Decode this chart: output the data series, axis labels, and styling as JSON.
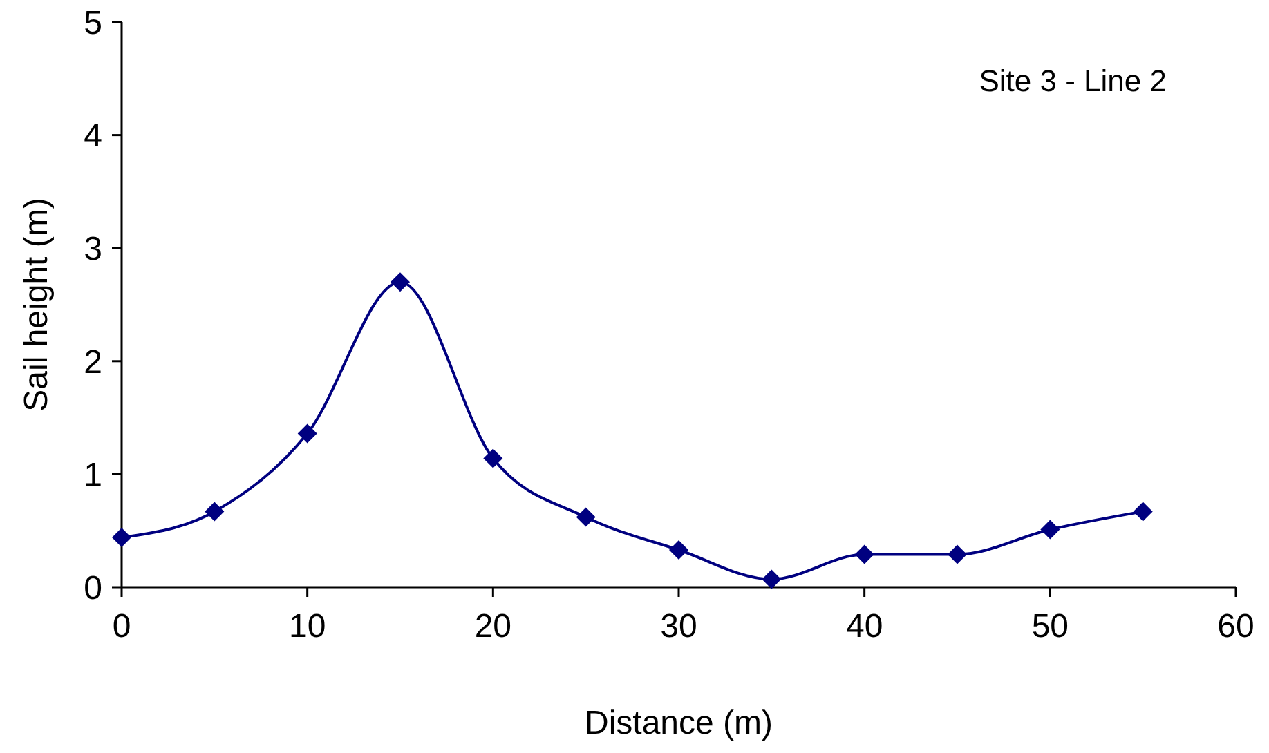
{
  "chart_data": {
    "type": "line",
    "xlabel": "Distance (m)",
    "ylabel": "Sail height (m)",
    "annotations": [
      "Site 3 - Line 2"
    ],
    "x": [
      0,
      5,
      10,
      15,
      20,
      25,
      30,
      35,
      40,
      45,
      50,
      55
    ],
    "series": [
      {
        "color": "#000080",
        "values": [
          0.44,
          0.67,
          1.36,
          2.7,
          1.14,
          0.62,
          0.33,
          0.07,
          0.29,
          0.29,
          0.51,
          0.67
        ]
      }
    ],
    "xlim": [
      0,
      60
    ],
    "xticks": [
      0,
      10,
      20,
      30,
      40,
      50,
      60
    ],
    "ylim": [
      0,
      5
    ],
    "yticks": [
      0,
      1,
      2,
      3,
      4,
      5
    ],
    "grid": false,
    "marker": "diamond",
    "line_style": "solid"
  }
}
